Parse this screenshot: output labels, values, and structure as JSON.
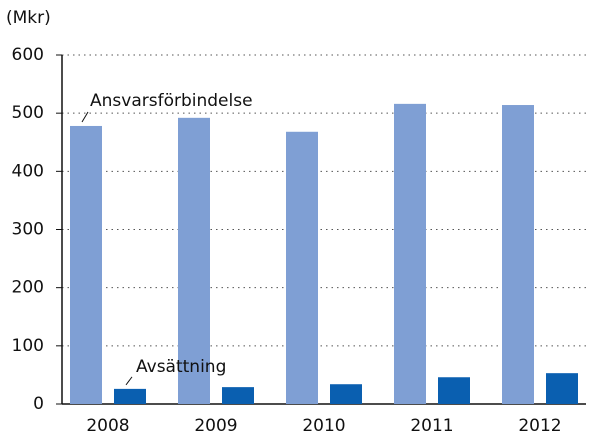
{
  "chart_data": {
    "type": "bar",
    "y_axis_label": "(Mkr)",
    "categories": [
      "2008",
      "2009",
      "2010",
      "2011",
      "2012"
    ],
    "series": [
      {
        "name": "Ansvarsförbindelse",
        "color": "#7f9fd4",
        "values": [
          478,
          492,
          468,
          516,
          514
        ]
      },
      {
        "name": "Avsättning",
        "color": "#0a5fb0",
        "values": [
          26,
          29,
          34,
          46,
          53
        ]
      }
    ],
    "ylim": [
      0,
      600
    ],
    "yticks": [
      0,
      100,
      200,
      300,
      400,
      500,
      600
    ],
    "grid": true
  }
}
